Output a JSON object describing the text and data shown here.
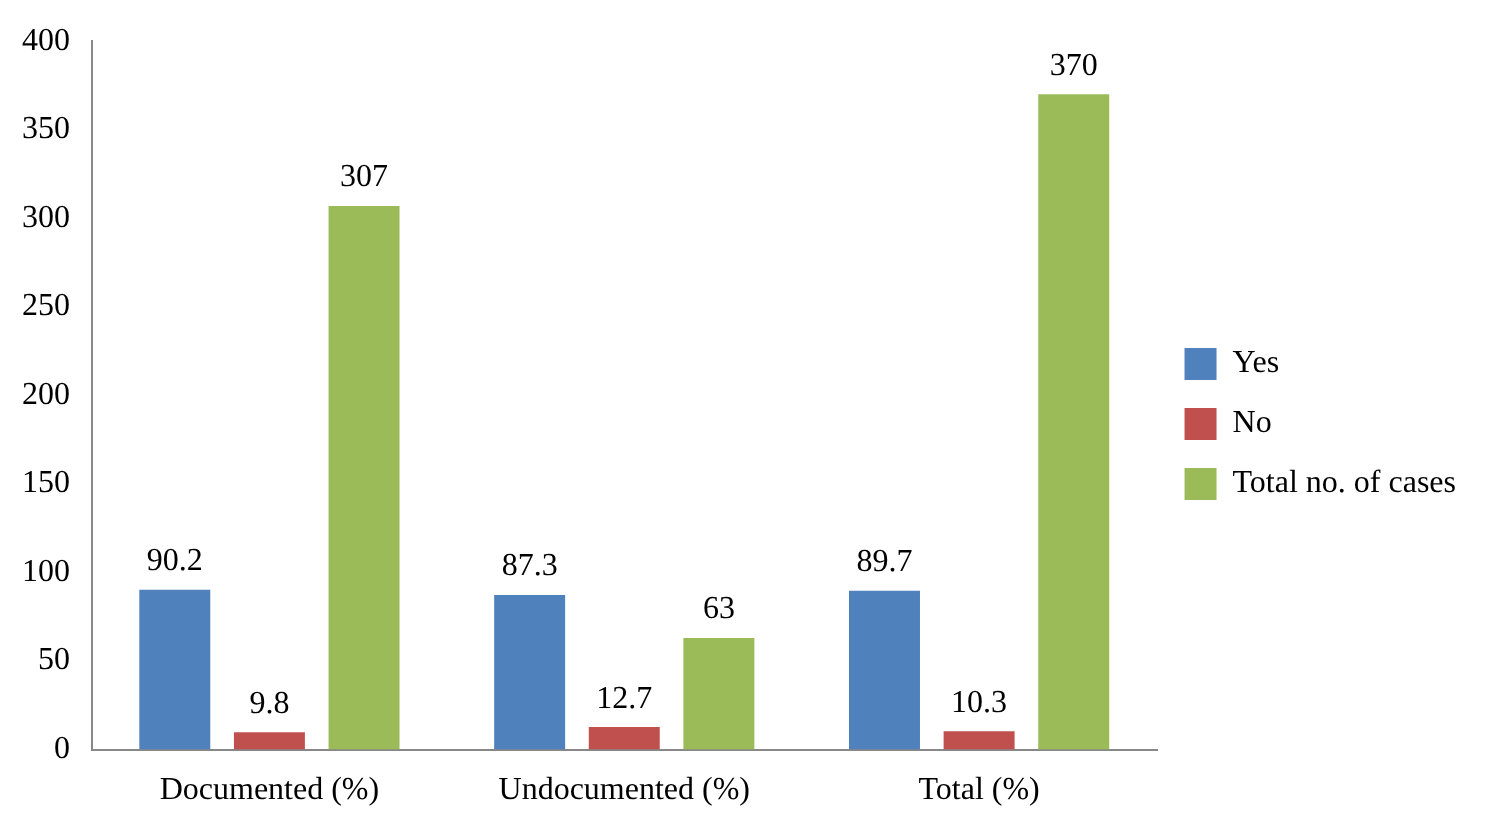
{
  "chart_data": {
    "type": "bar",
    "categories": [
      "Documented (%)",
      "Undocumented (%)",
      "Total (%)"
    ],
    "series": [
      {
        "name": "Yes",
        "color": "#4f81bd",
        "values": [
          90.2,
          87.3,
          89.7
        ]
      },
      {
        "name": "No",
        "color": "#c0504d",
        "values": [
          9.8,
          12.7,
          10.3
        ]
      },
      {
        "name": "Total no. of cases",
        "color": "#9bbb59",
        "values": [
          307,
          63,
          370
        ]
      }
    ],
    "ylim": [
      0,
      400
    ],
    "yticks": [
      0,
      50,
      100,
      150,
      200,
      250,
      300,
      350,
      400
    ],
    "grid": false,
    "legend": "right",
    "data_labels": true
  }
}
